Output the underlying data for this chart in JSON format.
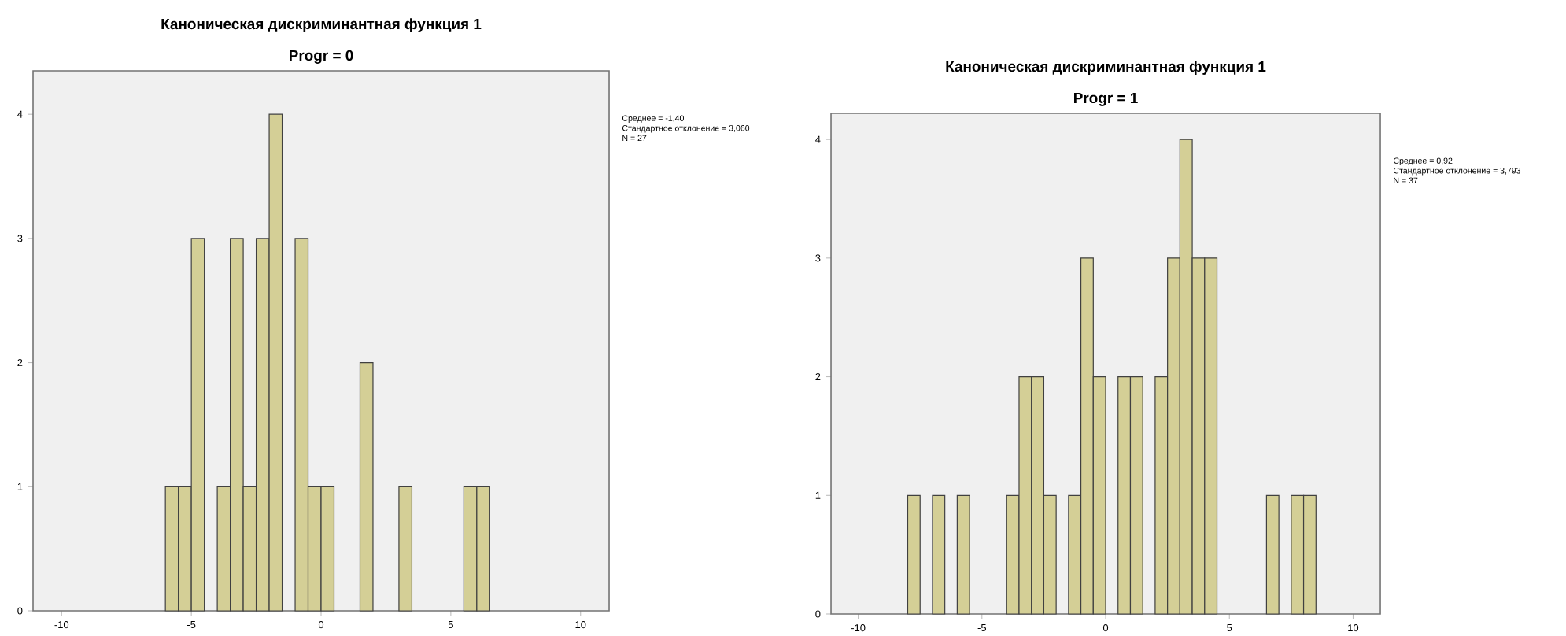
{
  "chart_data": [
    {
      "type": "histogram",
      "title": "Каноническая дискриминантная функция 1",
      "subtitle": "Progr = 0",
      "bins": [
        -6,
        -5.5,
        -5,
        -4.5,
        -4,
        -3.5,
        -3,
        -2.5,
        -2,
        -1.5,
        -1,
        -0.5,
        0,
        0.5,
        1,
        1.5,
        2,
        2.5,
        3,
        3.5,
        4,
        4.5,
        5,
        5.5,
        6,
        6.5
      ],
      "values": [
        1,
        1,
        3,
        0,
        1,
        3,
        1,
        3,
        4,
        0,
        3,
        1,
        1,
        0,
        0,
        2,
        0,
        0,
        1,
        0,
        0,
        0,
        0,
        1,
        1
      ],
      "color": "#d4cf96",
      "xlim": [
        -11.1,
        11.1
      ],
      "ylim": [
        0,
        4.35
      ],
      "xticks": [
        -10,
        -5,
        0,
        5,
        10
      ],
      "yticks": [
        0,
        1,
        2,
        3,
        4
      ],
      "grid": false,
      "annotations": [
        "Среднее = -1,40",
        "Стандартное отклонение = 3,060",
        "N = 27"
      ]
    },
    {
      "type": "histogram",
      "title": "Каноническая дискриминантная функция 1",
      "subtitle": "Progr = 1",
      "bins": [
        -8,
        -7.5,
        -7,
        -6.5,
        -6,
        -5.5,
        -5,
        -4.5,
        -4,
        -3.5,
        -3,
        -2.5,
        -2,
        -1.5,
        -1,
        -0.5,
        0,
        0.5,
        1,
        1.5,
        2,
        2.5,
        3,
        3.5,
        4,
        4.5,
        5,
        5.5,
        6,
        6.5,
        7,
        7.5,
        8,
        8.5
      ],
      "values": [
        1,
        0,
        1,
        0,
        1,
        0,
        0,
        0,
        1,
        2,
        2,
        1,
        0,
        1,
        3,
        2,
        0,
        2,
        2,
        0,
        2,
        3,
        4,
        3,
        3,
        0,
        0,
        0,
        0,
        1,
        0,
        1,
        1
      ],
      "color": "#d4cf96",
      "xlim": [
        -11.1,
        11.1
      ],
      "ylim": [
        0,
        4.22
      ],
      "xticks": [
        -10,
        -5,
        0,
        5,
        10
      ],
      "yticks": [
        0,
        1,
        2,
        3,
        4
      ],
      "grid": false,
      "annotations": [
        "Среднее = 0,92",
        "Стандартное отклонение = 3,793",
        "N = 37"
      ]
    }
  ]
}
